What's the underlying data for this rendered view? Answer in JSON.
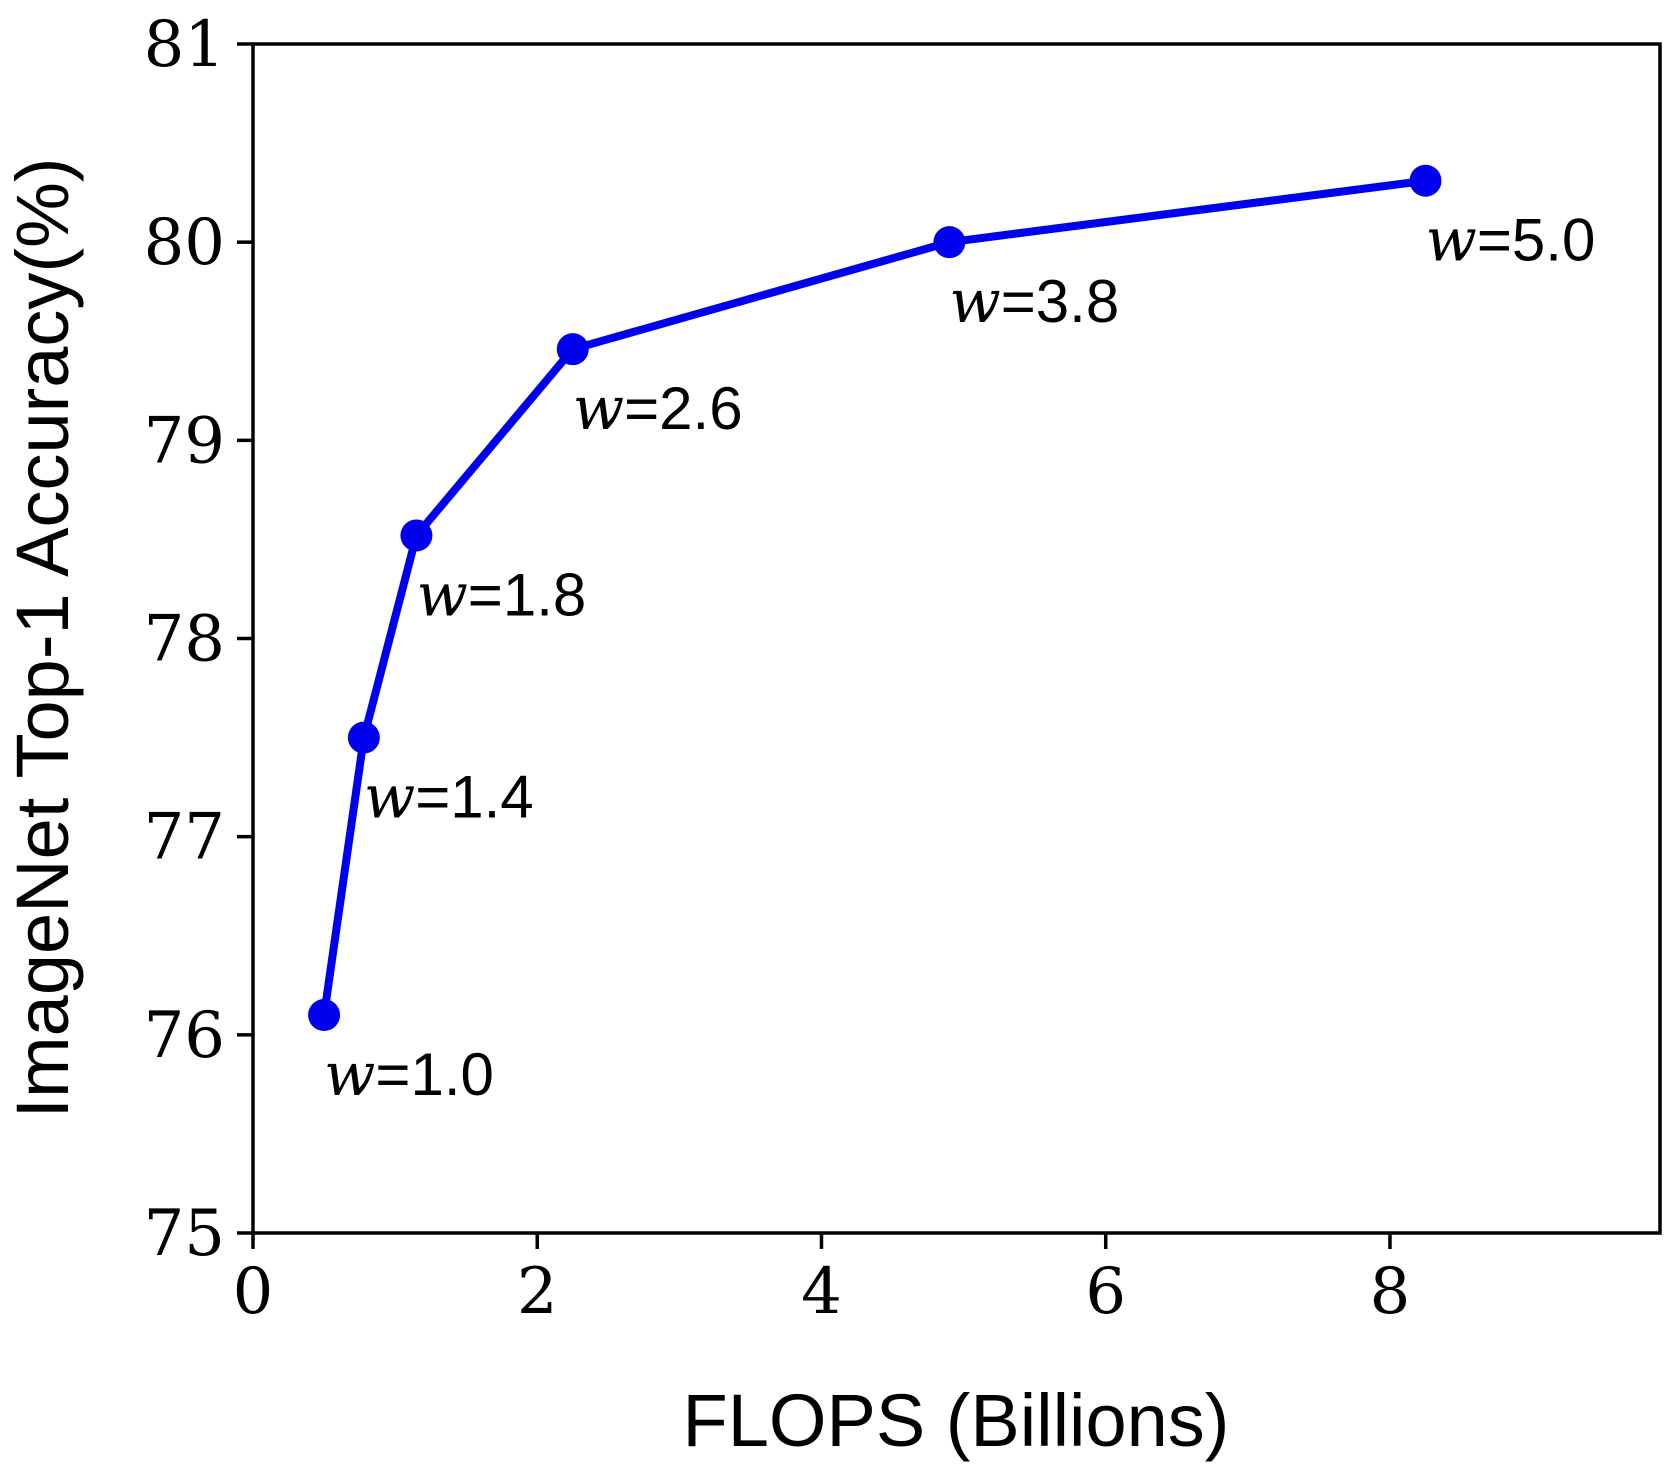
{
  "chart_data": {
    "type": "line",
    "title": "",
    "xlabel": "FLOPS (Billions)",
    "ylabel": "ImageNet Top-1 Accuracy(%)",
    "xlim": [
      0,
      9.9
    ],
    "ylim": [
      75,
      81
    ],
    "xticks": [
      "0",
      "2",
      "4",
      "6",
      "8"
    ],
    "yticks": [
      "75",
      "76",
      "77",
      "78",
      "79",
      "80",
      "81"
    ],
    "grid": false,
    "series": [
      {
        "color": "#0000ee",
        "points": [
          {
            "x": 0.5,
            "y": 76.1,
            "label_var": "w",
            "label_rest": "=1.0"
          },
          {
            "x": 0.78,
            "y": 77.5,
            "label_var": "w",
            "label_rest": "=1.4"
          },
          {
            "x": 1.15,
            "y": 78.52,
            "label_var": "w",
            "label_rest": "=1.8"
          },
          {
            "x": 2.25,
            "y": 79.46,
            "label_var": "w",
            "label_rest": "=2.6"
          },
          {
            "x": 4.9,
            "y": 80.0,
            "label_var": "w",
            "label_rest": "=3.8"
          },
          {
            "x": 8.25,
            "y": 80.31,
            "label_var": "w",
            "label_rest": "=5.0"
          }
        ]
      }
    ]
  }
}
